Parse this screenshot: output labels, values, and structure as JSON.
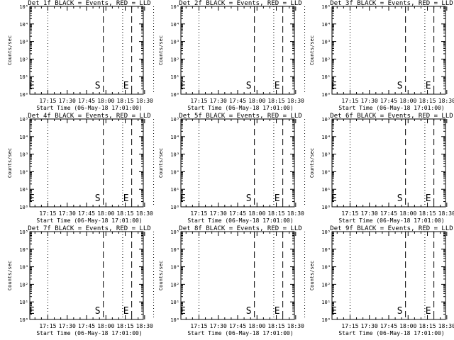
{
  "chart_data": [
    {
      "type": "line",
      "title": "Det 1f BLACK = Events, RED = LLD",
      "xlabel": "Start Time (06-May-18 17:01:00)",
      "ylabel": "Counts/sec",
      "x_ticks": [
        "17:15",
        "17:30",
        "17:45",
        "18:00",
        "18:15",
        "18:30"
      ],
      "y_ticks": [
        "10⁰",
        "10¹",
        "10²",
        "10³",
        "10⁴",
        "10⁵"
      ],
      "ylim": [
        0,
        5
      ],
      "scale": "log",
      "series": []
    },
    {
      "type": "line",
      "title": "Det 2f BLACK = Events, RED = LLD",
      "xlabel": "Start Time (06-May-18 17:01:00)",
      "ylabel": "Counts/sec",
      "x_ticks": [
        "17:15",
        "17:30",
        "17:45",
        "18:00",
        "18:15",
        "18:30"
      ],
      "y_ticks": [
        "10⁰",
        "10¹",
        "10²",
        "10³",
        "10⁴",
        "10⁵"
      ],
      "ylim": [
        0,
        5
      ],
      "scale": "log",
      "series": []
    },
    {
      "type": "line",
      "title": "Det 3f BLACK = Events, RED = LLD",
      "xlabel": "Start Time (06-May-18 17:01:00)",
      "ylabel": "Counts/sec",
      "x_ticks": [
        "17:15",
        "17:30",
        "17:45",
        "18:00",
        "18:15",
        "18:30"
      ],
      "y_ticks": [
        "10⁰",
        "10¹",
        "10²",
        "10³",
        "10⁴",
        "10⁵"
      ],
      "ylim": [
        0,
        5
      ],
      "scale": "log",
      "series": []
    },
    {
      "type": "line",
      "title": "Det 4f BLACK = Events, RED = LLD",
      "xlabel": "Start Time (06-May-18 17:01:00)",
      "ylabel": "Counts/sec",
      "x_ticks": [
        "17:15",
        "17:30",
        "17:45",
        "18:00",
        "18:15",
        "18:30"
      ],
      "y_ticks": [
        "10⁰",
        "10¹",
        "10²",
        "10³",
        "10⁴",
        "10⁵"
      ],
      "ylim": [
        0,
        5
      ],
      "scale": "log",
      "series": []
    },
    {
      "type": "line",
      "title": "Det 5f BLACK = Events, RED = LLD",
      "xlabel": "Start Time (06-May-18 17:01:00)",
      "ylabel": "Counts/sec",
      "x_ticks": [
        "17:15",
        "17:30",
        "17:45",
        "18:00",
        "18:15",
        "18:30"
      ],
      "y_ticks": [
        "10⁰",
        "10¹",
        "10²",
        "10³",
        "10⁴",
        "10⁵"
      ],
      "ylim": [
        0,
        5
      ],
      "scale": "log",
      "series": []
    },
    {
      "type": "line",
      "title": "Det 6f BLACK = Events, RED = LLD",
      "xlabel": "Start Time (06-May-18 17:01:00)",
      "ylabel": "Counts/sec",
      "x_ticks": [
        "17:15",
        "17:30",
        "17:45",
        "18:00",
        "18:15",
        "18:30"
      ],
      "y_ticks": [
        "10⁰",
        "10¹",
        "10²",
        "10³",
        "10⁴",
        "10⁵"
      ],
      "ylim": [
        0,
        5
      ],
      "scale": "log",
      "series": []
    },
    {
      "type": "line",
      "title": "Det 7f BLACK = Events, RED = LLD",
      "xlabel": "Start Time (06-May-18 17:01:00)",
      "ylabel": "Counts/sec",
      "x_ticks": [
        "17:15",
        "17:30",
        "17:45",
        "18:00",
        "18:15",
        "18:30"
      ],
      "y_ticks": [
        "10⁰",
        "10¹",
        "10²",
        "10³",
        "10⁴",
        "10⁵"
      ],
      "ylim": [
        0,
        5
      ],
      "scale": "log",
      "series": []
    },
    {
      "type": "line",
      "title": "Det 8f BLACK = Events, RED = LLD",
      "xlabel": "Start Time (06-May-18 17:01:00)",
      "ylabel": "Counts/sec",
      "x_ticks": [
        "17:15",
        "17:30",
        "17:45",
        "18:00",
        "18:15",
        "18:30"
      ],
      "y_ticks": [
        "10⁰",
        "10¹",
        "10²",
        "10³",
        "10⁴",
        "10⁵"
      ],
      "ylim": [
        0,
        5
      ],
      "scale": "log",
      "series": []
    },
    {
      "type": "line",
      "title": "Det 9f BLACK = Events, RED = LLD",
      "xlabel": "Start Time (06-May-18 17:01:00)",
      "ylabel": "Counts/sec",
      "x_ticks": [
        "17:15",
        "17:30",
        "17:45",
        "18:00",
        "18:15",
        "18:30"
      ],
      "y_ticks": [
        "10⁰",
        "10¹",
        "10²",
        "10³",
        "10⁴",
        "10⁵"
      ],
      "ylim": [
        0,
        5
      ],
      "scale": "log",
      "series": []
    }
  ],
  "markers": {
    "dotted_times": [
      "17:15",
      "18:13",
      "18:37"
    ],
    "dashed": [
      {
        "time": "17:58",
        "label": "S"
      },
      {
        "time": "18:20",
        "label": "E"
      }
    ],
    "start_label": "E"
  },
  "colors": {
    "background": "#ffffff",
    "ink": "#000000"
  }
}
